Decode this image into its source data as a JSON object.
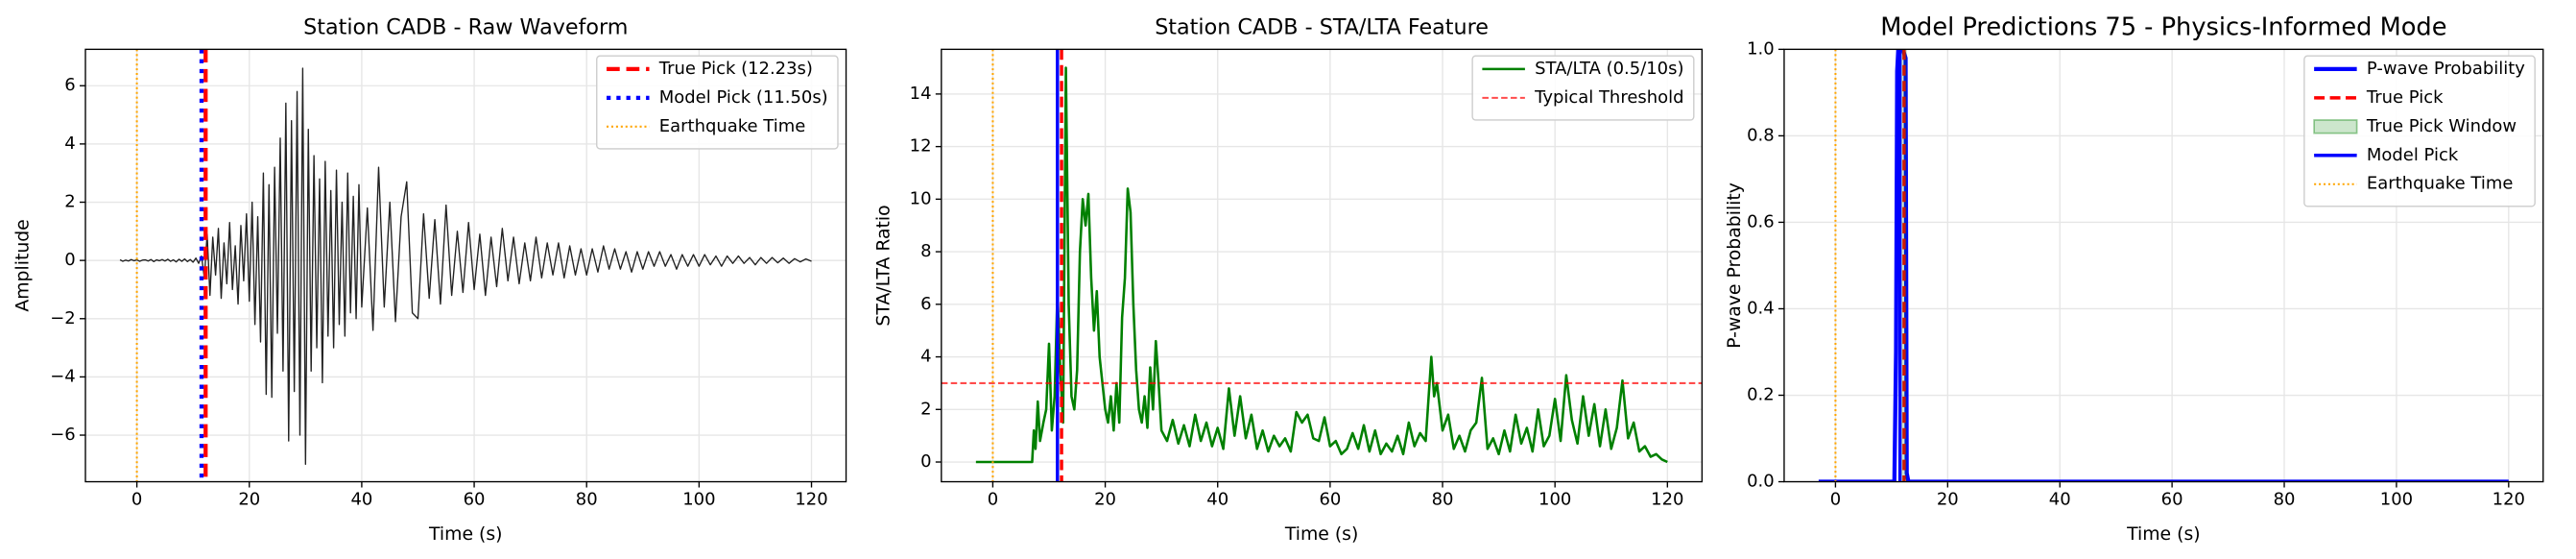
{
  "chart_data": [
    {
      "type": "line",
      "title": "Station CADB - Raw Waveform",
      "xlabel": "Time (s)",
      "ylabel": "Amplitude",
      "xlim": [
        -9.15,
        126.15
      ],
      "ylim": [
        -7.6,
        7.25
      ],
      "xticks": [
        0,
        20,
        40,
        60,
        80,
        100,
        120
      ],
      "yticks": [
        {
          "value": -6,
          "label": "−6"
        },
        {
          "value": -4,
          "label": "−4"
        },
        {
          "value": -2,
          "label": "−2"
        },
        0,
        2,
        4,
        6
      ],
      "grid": true,
      "legend": "upper right",
      "series": [
        {
          "color": "#222222",
          "linewidth": 0.8,
          "x": [
            -3,
            -2.5,
            -2,
            -1.5,
            -1,
            -0.5,
            0,
            0.5,
            1,
            1.5,
            2,
            2.5,
            3,
            3.5,
            4,
            4.5,
            5,
            5.5,
            6,
            6.5,
            7,
            7.5,
            8,
            8.5,
            9,
            9.5,
            10,
            10.5,
            11,
            11.5,
            12,
            12.5,
            13,
            13.5,
            14,
            14.5,
            15,
            15.5,
            16,
            16.5,
            17,
            17.5,
            18,
            18.5,
            19,
            19.5,
            20,
            20.5,
            21,
            21.5,
            22,
            22.5,
            23,
            23.5,
            24,
            24.5,
            25,
            25.5,
            26,
            26.5,
            27,
            27.5,
            28,
            28.5,
            29,
            29.5,
            30,
            30.5,
            31,
            31.5,
            32,
            32.5,
            33,
            33.5,
            34,
            34.5,
            35,
            35.5,
            36,
            36.5,
            37,
            37.5,
            38,
            38.5,
            39,
            39.5,
            40,
            41,
            42,
            43,
            44,
            45,
            46,
            47,
            48,
            49,
            50,
            51,
            52,
            53,
            54,
            55,
            56,
            57,
            58,
            59,
            60,
            61,
            62,
            63,
            64,
            65,
            66,
            67,
            68,
            69,
            70,
            71,
            72,
            73,
            74,
            75,
            76,
            77,
            78,
            79,
            80,
            81,
            82,
            83,
            84,
            85,
            86,
            87,
            88,
            89,
            90,
            91,
            92,
            93,
            94,
            95,
            96,
            97,
            98,
            99,
            100,
            101,
            102,
            103,
            104,
            105,
            106,
            107,
            108,
            109,
            110,
            111,
            112,
            113,
            114,
            115,
            116,
            117,
            118,
            119,
            120
          ],
          "values": [
            0.02,
            -0.03,
            0.01,
            -0.02,
            0.03,
            -0.01,
            0.02,
            -0.03,
            0.01,
            0.02,
            -0.02,
            0.03,
            -0.04,
            0.02,
            -0.01,
            0.03,
            -0.02,
            0.04,
            -0.03,
            0.02,
            -0.05,
            0.04,
            -0.03,
            0.05,
            -0.04,
            0.03,
            -0.06,
            0.08,
            -0.1,
            0.15,
            -0.6,
            0.9,
            -1.2,
            0.8,
            -0.5,
            1.1,
            -1.3,
            0.6,
            -0.8,
            1.3,
            -1.0,
            0.5,
            -1.5,
            1.2,
            -0.7,
            1.6,
            -1.4,
            2.0,
            -2.2,
            1.5,
            -2.8,
            3.0,
            -4.6,
            2.6,
            -4.7,
            3.2,
            -2.5,
            4.2,
            -3.8,
            5.4,
            -6.2,
            4.8,
            -4.5,
            5.8,
            -6.0,
            6.6,
            -7.0,
            4.5,
            -3.8,
            3.6,
            -3.0,
            2.8,
            -4.2,
            3.4,
            -2.6,
            2.4,
            -3.0,
            3.1,
            -2.2,
            2.0,
            -2.6,
            3.0,
            -1.8,
            2.2,
            -2.0,
            2.6,
            -1.6,
            1.8,
            -2.4,
            3.2,
            -1.6,
            2.0,
            -2.1,
            1.5,
            2.7,
            -1.8,
            -2.0,
            1.6,
            -1.3,
            1.4,
            -1.5,
            1.9,
            -1.2,
            1.0,
            -1.1,
            1.3,
            -1.0,
            0.9,
            -1.2,
            0.8,
            -0.9,
            1.1,
            -0.7,
            0.8,
            -0.8,
            0.6,
            -0.7,
            0.8,
            -0.6,
            0.6,
            -0.5,
            0.6,
            -0.6,
            0.5,
            -0.5,
            0.4,
            -0.5,
            0.4,
            -0.4,
            0.5,
            -0.3,
            0.4,
            -0.3,
            0.3,
            -0.4,
            0.3,
            -0.3,
            0.3,
            -0.2,
            0.3,
            -0.2,
            0.2,
            -0.3,
            0.2,
            -0.2,
            0.2,
            -0.2,
            0.2,
            -0.15,
            0.15,
            -0.2,
            0.15,
            -0.1,
            0.15,
            -0.1,
            0.1,
            -0.15,
            0.1,
            -0.1,
            0.1,
            -0.08,
            0.08,
            -0.1,
            0.06,
            -0.05,
            0.05,
            -0.03
          ]
        }
      ],
      "overlays": [
        {
          "type": "vline",
          "name": "True Pick (12.23s)",
          "x": 12.23,
          "color": "#ff0000",
          "style": "dashed",
          "linewidth": 2.5
        },
        {
          "type": "vline",
          "name": "Model Pick (11.50s)",
          "x": 11.5,
          "color": "#0000ff",
          "style": "dotted",
          "linewidth": 2.5
        },
        {
          "type": "vline",
          "name": "Earthquake Time",
          "x": 0,
          "color": "#ffa500",
          "style": "dotted",
          "linewidth": 1.2
        }
      ]
    },
    {
      "type": "line",
      "title": "Station CADB - STA/LTA Feature",
      "xlabel": "Time (s)",
      "ylabel": "STA/LTA Ratio",
      "xlim": [
        -9.15,
        126.15
      ],
      "ylim": [
        -0.75,
        15.7
      ],
      "xticks": [
        0,
        20,
        40,
        60,
        80,
        100,
        120
      ],
      "yticks": [
        0,
        2,
        4,
        6,
        8,
        10,
        12,
        14
      ],
      "grid": true,
      "legend": "upper right",
      "series": [
        {
          "name": "STA/LTA (0.5/10s)",
          "color": "#008000",
          "linewidth": 1.5,
          "x": [
            -3,
            7,
            7.3,
            7.6,
            8,
            8.4,
            9,
            9.5,
            10,
            10.5,
            11,
            11.5,
            12,
            12.5,
            13,
            13.5,
            14,
            14.5,
            15,
            15.5,
            16,
            16.5,
            17,
            17.5,
            18,
            18.5,
            19,
            19.5,
            20,
            20.5,
            21,
            21.5,
            22,
            22.5,
            23,
            23.5,
            24,
            24.5,
            25,
            25.5,
            26,
            26.5,
            27,
            27.5,
            28,
            28.5,
            29,
            29.5,
            30,
            31,
            32,
            33,
            34,
            35,
            36,
            37,
            38,
            39,
            40,
            41,
            42,
            43,
            44,
            45,
            46,
            47,
            48,
            49,
            50,
            51,
            52,
            53,
            54,
            55,
            56,
            57,
            58,
            59,
            60,
            61,
            62,
            63,
            64,
            65,
            66,
            67,
            68,
            69,
            70,
            71,
            72,
            73,
            74,
            75,
            76,
            77,
            78,
            78.5,
            79,
            80,
            81,
            82,
            83,
            84,
            85,
            86,
            87,
            88,
            89,
            90,
            91,
            92,
            93,
            94,
            95,
            96,
            97,
            98,
            99,
            100,
            101,
            102,
            103,
            104,
            105,
            106,
            107,
            108,
            109,
            110,
            111,
            112,
            113,
            114,
            115,
            116,
            117,
            118,
            119,
            120
          ],
          "values": [
            0,
            0,
            1.2,
            0.5,
            2.3,
            0.8,
            1.5,
            2.0,
            4.5,
            1.2,
            2.5,
            6.5,
            3.5,
            1.5,
            15,
            6,
            2.5,
            2,
            3.5,
            8,
            10,
            9,
            10.2,
            7,
            5,
            6.5,
            4,
            3,
            2,
            1.5,
            2.5,
            1.2,
            3,
            1.5,
            5.5,
            7,
            10.4,
            9.5,
            6,
            3.5,
            2,
            1.5,
            2.5,
            1.3,
            3.6,
            2,
            4.6,
            3,
            1.2,
            0.8,
            1.6,
            0.7,
            1.4,
            0.6,
            1.8,
            0.8,
            1.5,
            0.6,
            1.3,
            0.5,
            2.8,
            1.0,
            2.5,
            0.9,
            1.8,
            0.5,
            1.2,
            0.4,
            1.0,
            0.6,
            0.9,
            0.4,
            1.9,
            1.5,
            1.8,
            0.9,
            0.8,
            1.7,
            0.6,
            0.8,
            0.3,
            0.5,
            1.1,
            0.5,
            1.4,
            0.4,
            1.2,
            0.3,
            0.7,
            0.4,
            1.0,
            0.3,
            1.5,
            0.6,
            1.1,
            0.8,
            4.0,
            2.5,
            3.0,
            1.2,
            1.8,
            0.5,
            1.0,
            0.4,
            1.2,
            1.5,
            3.2,
            0.5,
            0.9,
            0.3,
            1.2,
            0.4,
            1.8,
            0.7,
            1.3,
            0.4,
            2.0,
            0.6,
            1.0,
            2.4,
            0.8,
            3.3,
            1.6,
            0.7,
            2.5,
            1.0,
            2.2,
            0.6,
            2.0,
            0.5,
            1.3,
            3.1,
            0.9,
            1.5,
            0.4,
            0.6,
            0.2,
            0.3,
            0.1,
            0
          ]
        }
      ],
      "overlays": [
        {
          "type": "hline",
          "name": "Typical Threshold",
          "y": 3,
          "color": "#ff0000",
          "style": "dashed",
          "linewidth": 1.2,
          "opacity": 0.7
        },
        {
          "type": "vline",
          "x": 12.23,
          "color": "#ff0000",
          "style": "dashed",
          "linewidth": 2
        },
        {
          "type": "vline",
          "x": 11.5,
          "color": "#0000ff",
          "style": "solid",
          "linewidth": 2
        },
        {
          "type": "vline",
          "x": 0,
          "color": "#ffa500",
          "style": "dotted",
          "linewidth": 1.2
        }
      ]
    },
    {
      "type": "line",
      "title": "Model Predictions 75 - Physics-Informed Mode",
      "xlabel": "Time (s)",
      "ylabel": "P-wave Probability",
      "xlim": [
        -9.15,
        126.15
      ],
      "ylim": [
        0,
        1
      ],
      "xticks": [
        0,
        20,
        40,
        60,
        80,
        100,
        120
      ],
      "yticks": [
        {
          "value": 0,
          "label": "0.0"
        },
        {
          "value": 0.2,
          "label": "0.2"
        },
        {
          "value": 0.4,
          "label": "0.4"
        },
        {
          "value": 0.6,
          "label": "0.6"
        },
        {
          "value": 0.8,
          "label": "0.8"
        },
        {
          "value": 1,
          "label": "1.0"
        }
      ],
      "grid": true,
      "legend": "upper right",
      "series": [
        {
          "name": "P-wave Probability",
          "color": "#0000ff",
          "linewidth": 2.5,
          "x": [
            -3,
            10.5,
            10.8,
            11,
            11.2,
            11.5,
            12,
            12.5,
            12.7,
            13,
            120
          ],
          "values": [
            0,
            0,
            0.3,
            0.95,
            1,
            1,
            1,
            0.98,
            0.02,
            0,
            0
          ]
        }
      ],
      "overlays": [
        {
          "type": "vline",
          "name": "True Pick",
          "x": 12.23,
          "color": "#ff0000",
          "style": "dashed",
          "linewidth": 2
        },
        {
          "type": "span",
          "name": "True Pick Window",
          "x0": 11.73,
          "x1": 12.73,
          "color": "#008000",
          "opacity": 0.2
        },
        {
          "type": "vline",
          "name": "Model Pick",
          "x": 11.5,
          "color": "#0000ff",
          "style": "solid",
          "linewidth": 2
        },
        {
          "type": "vline",
          "name": "Earthquake Time",
          "x": 0,
          "color": "#ffa500",
          "style": "dotted",
          "linewidth": 1.2
        }
      ]
    }
  ]
}
